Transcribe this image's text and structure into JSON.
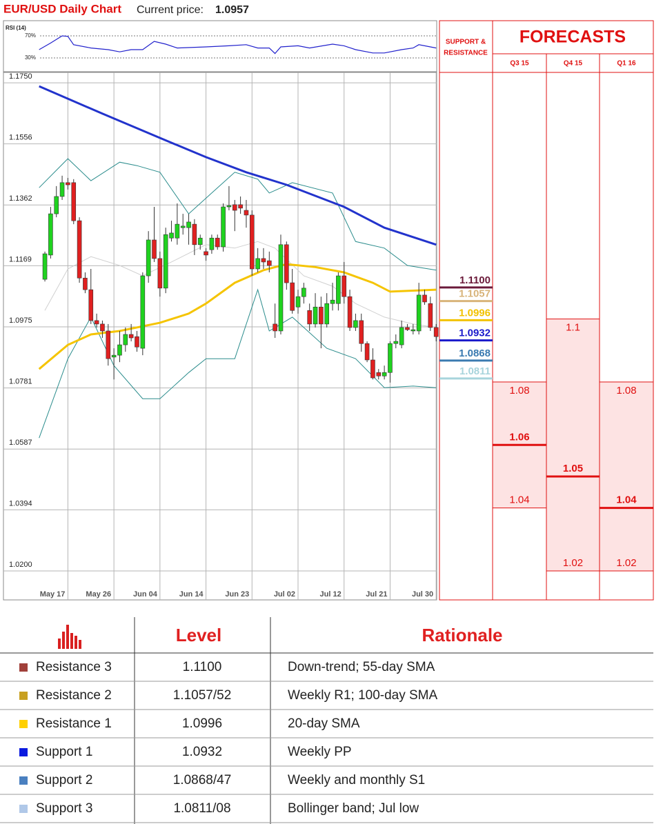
{
  "header": {
    "title": "EUR/USD Daily Chart",
    "price_label": "Current price:",
    "price": 1.0957
  },
  "chart_data": [
    {
      "type": "line",
      "title": "RSI (14)",
      "color": "#2020cc",
      "x": [
        -1,
        1,
        3,
        4,
        5,
        8,
        11,
        13,
        15,
        17,
        19,
        21,
        23,
        28,
        32,
        35,
        37,
        39,
        40,
        41,
        44,
        46,
        50,
        52,
        54,
        57,
        59,
        62,
        64,
        65,
        68
      ],
      "values": [
        45,
        57,
        70,
        69,
        54,
        48,
        45,
        41,
        45,
        45,
        60,
        55,
        48,
        50,
        52,
        54,
        48,
        48,
        38,
        50,
        52,
        48,
        55,
        52,
        45,
        39,
        39,
        45,
        48,
        54,
        48
      ],
      "xlim": [
        -7.2,
        68.1
      ],
      "ylim": [
        6.25,
        93.75
      ],
      "yticks": [
        {
          "value": 70,
          "label": "70%"
        },
        {
          "value": 30,
          "label": "30%"
        }
      ]
    },
    {
      "type": "candlestick",
      "up_color": "#1fd21f",
      "down_color": "#e02020",
      "grid": true,
      "open": [
        1.1126,
        1.1203,
        1.1334,
        1.1389,
        1.1433,
        1.1433,
        1.1312,
        1.113,
        1.1093,
        1.0995,
        1.0984,
        1.0962,
        1.0879,
        1.0885,
        1.0918,
        1.0951,
        1.0944,
        1.0907,
        1.1137,
        1.1251,
        1.1192,
        1.1098,
        1.1257,
        1.1257,
        1.129,
        1.129,
        1.1301,
        1.1236,
        1.1214,
        1.122,
        1.1257,
        1.1229,
        1.1356,
        1.1363,
        1.1363,
        1.1345,
        1.133,
        1.1159,
        1.1192,
        1.1185,
        1.0984,
        1.0962,
        1.1236,
        1.1115,
        1.1038,
        1.1071,
        1.1027,
        1.0984,
        1.1038,
        1.0984,
        1.1049,
        1.1049,
        1.1137,
        1.1071,
        1.0973,
        1.0995,
        1.0922,
        1.087,
        1.083,
        1.0819,
        1.083,
        1.0922,
        1.0918,
        1.0973,
        1.0962,
        1.0962,
        1.1076,
        1.1049,
        1.0973
      ],
      "high": [
        1.1214,
        1.1356,
        1.1422,
        1.1455,
        1.1448,
        1.1444,
        1.1323,
        1.1148,
        1.1159,
        1.1017,
        1.0995,
        1.0984,
        1.0907,
        1.0962,
        1.0973,
        1.0984,
        1.0962,
        1.1148,
        1.1279,
        1.1356,
        1.1214,
        1.129,
        1.1312,
        1.1367,
        1.1334,
        1.1334,
        1.1317,
        1.1268,
        1.1225,
        1.1268,
        1.1268,
        1.1367,
        1.1422,
        1.1378,
        1.1389,
        1.1378,
        1.1345,
        1.1225,
        1.1225,
        1.1214,
        1.1049,
        1.1268,
        1.1246,
        1.1159,
        1.1093,
        1.1115,
        1.1049,
        1.1082,
        1.1071,
        1.1082,
        1.1115,
        1.1148,
        1.1181,
        1.1093,
        1.1017,
        1.1017,
        1.0929,
        1.0907,
        1.0841,
        1.0852,
        1.0929,
        1.0951,
        1.0995,
        1.0984,
        1.0984,
        1.1115,
        1.1093,
        1.1071,
        1.0984
      ],
      "low": [
        1.1119,
        1.1192,
        1.1323,
        1.1378,
        1.1411,
        1.1301,
        1.1115,
        1.1082,
        1.0984,
        1.0973,
        1.094,
        1.0852,
        1.0808,
        1.0863,
        1.0896,
        1.0929,
        1.0896,
        1.0885,
        1.1115,
        1.1181,
        1.1071,
        1.1082,
        1.1246,
        1.1236,
        1.1268,
        1.1236,
        1.1203,
        1.122,
        1.1185,
        1.1207,
        1.122,
        1.1214,
        1.1345,
        1.1279,
        1.1334,
        1.129,
        1.1137,
        1.1148,
        1.1159,
        1.1148,
        1.094,
        1.0951,
        1.1093,
        1.1017,
        1.1017,
        1.1049,
        1.0962,
        1.0973,
        1.0907,
        1.0973,
        1.1027,
        1.1027,
        1.1049,
        1.0962,
        1.0962,
        1.0896,
        1.0863,
        1.0808,
        1.0808,
        1.0808,
        1.0798,
        1.0907,
        1.0907,
        1.0962,
        1.0951,
        1.0951,
        1.1045,
        1.0962,
        1.0929
      ],
      "close": [
        1.1207,
        1.1334,
        1.1389,
        1.1433,
        1.1426,
        1.1312,
        1.113,
        1.1093,
        1.0995,
        1.0984,
        1.0962,
        1.0874,
        1.0885,
        1.0918,
        1.0951,
        1.094,
        1.0911,
        1.1137,
        1.1251,
        1.1192,
        1.1098,
        1.1268,
        1.1273,
        1.1301,
        1.1295,
        1.1308,
        1.1236,
        1.1257,
        1.1203,
        1.1257,
        1.1229,
        1.1356,
        1.136,
        1.1345,
        1.1352,
        1.133,
        1.1159,
        1.1192,
        1.1181,
        1.117,
        1.0962,
        1.1236,
        1.1115,
        1.1027,
        1.1071,
        1.1098,
        1.0984,
        1.1038,
        1.0984,
        1.1049,
        1.106,
        1.1137,
        1.1071,
        1.0973,
        1.0995,
        1.0922,
        1.087,
        1.0813,
        1.0819,
        1.083,
        1.0922,
        1.0929,
        1.0973,
        1.0966,
        1.0966,
        1.1076,
        1.1054,
        1.0973,
        1.0944
      ],
      "series": [
        {
          "color": "#d0d0d0",
          "width": 1,
          "x": [
            0,
            4,
            8,
            13,
            17,
            22,
            28,
            33,
            37,
            40,
            45,
            50,
            54,
            59,
            64,
            68
          ],
          "values": [
            1.1027,
            1.1159,
            1.1198,
            1.117,
            1.1137,
            1.1181,
            1.1236,
            1.1225,
            1.1246,
            1.1225,
            1.1137,
            1.1104,
            1.1049,
            1.1006,
            1.0984,
            1.0973
          ]
        },
        {
          "color": "#2a8c8c",
          "width": 1,
          "x": [
            -1,
            4,
            8,
            13,
            16,
            20,
            25,
            29,
            33,
            37,
            39,
            43,
            50,
            54,
            59,
            63,
            68
          ],
          "values": [
            1.1417,
            1.1509,
            1.1439,
            1.1498,
            1.1487,
            1.1466,
            1.1334,
            1.14,
            1.1466,
            1.1444,
            1.14,
            1.1433,
            1.14,
            1.1246,
            1.1225,
            1.117,
            1.1155
          ]
        },
        {
          "color": "#2a8c8c",
          "width": 1,
          "x": [
            -1,
            4,
            8,
            12,
            17,
            20,
            25,
            28,
            33,
            37,
            39,
            43,
            49,
            54,
            59,
            64,
            68
          ],
          "values": [
            1.0622,
            1.0874,
            1.1006,
            1.0852,
            1.0747,
            1.0747,
            1.083,
            1.0874,
            1.0874,
            1.1093,
            1.0962,
            1.1006,
            1.0907,
            1.0874,
            1.0782,
            1.0787,
            1.0782
          ]
        },
        {
          "color": "#f5c400",
          "width": 3,
          "x": [
            -1,
            4,
            8,
            13,
            20,
            25,
            28,
            33,
            38,
            42,
            47,
            52,
            57,
            60,
            68
          ],
          "values": [
            1.0841,
            1.0918,
            1.0951,
            1.0962,
            1.0988,
            1.1017,
            1.1049,
            1.1115,
            1.1155,
            1.1174,
            1.1165,
            1.1148,
            1.1115,
            1.1087,
            1.1093
          ]
        },
        {
          "color": "#2233cc",
          "width": 3,
          "x": [
            -1,
            10,
            20,
            28,
            35,
            42,
            52,
            59,
            68
          ],
          "values": [
            1.1739,
            1.1652,
            1.1575,
            1.1514,
            1.1466,
            1.1426,
            1.1356,
            1.129,
            1.1236
          ]
        }
      ],
      "xlim": [
        -7.2,
        68.1
      ],
      "ylim": [
        1.0108,
        1.1783
      ],
      "yticks": [
        {
          "value": 1.175,
          "label": "1.1750"
        },
        {
          "value": 1.1556,
          "label": "1.1556"
        },
        {
          "value": 1.1362,
          "label": "1.1362"
        },
        {
          "value": 1.1169,
          "label": "1.1169"
        },
        {
          "value": 1.0975,
          "label": "1.0975"
        },
        {
          "value": 1.0781,
          "label": "1.0781"
        },
        {
          "value": 1.0587,
          "label": "1.0587"
        },
        {
          "value": 1.0394,
          "label": "1.0394"
        },
        {
          "value": 1.02,
          "label": "1.0200"
        }
      ],
      "xticks": [
        {
          "value": 4,
          "label": "May 17"
        },
        {
          "value": 12,
          "label": "May 26"
        },
        {
          "value": 20,
          "label": "Jun 04"
        },
        {
          "value": 28,
          "label": "Jun 14"
        },
        {
          "value": 36,
          "label": "Jun 23"
        },
        {
          "value": 44,
          "label": "Jul 02"
        },
        {
          "value": 52,
          "label": "Jul 12"
        },
        {
          "value": 60,
          "label": "Jul 21"
        },
        {
          "value": 68,
          "label": "Jul 30"
        }
      ]
    }
  ],
  "support_resistance": {
    "title": [
      "SUPPORT &",
      "RESISTANCE"
    ],
    "levels": [
      {
        "value": 1.11,
        "label": "1.1100",
        "color": "#6b1a3a"
      },
      {
        "value": 1.1057,
        "color": "#d8b47a"
      },
      {
        "value": 1.0996,
        "color": "#f2c200"
      },
      {
        "value": 1.0932,
        "color": "#1a1acc"
      },
      {
        "value": 1.0868,
        "color": "#3a7ab0"
      },
      {
        "value": 1.0811,
        "color": "#a8d4dc"
      }
    ]
  },
  "forecasts": {
    "title": "FORECASTS",
    "columns": [
      {
        "label": "Q3 15",
        "high": 1.08,
        "mid": 1.06,
        "low": 1.04
      },
      {
        "label": "Q4 15",
        "high": 1.1,
        "mid": 1.05,
        "low": 1.02
      },
      {
        "label": "Q1 16",
        "high": 1.08,
        "mid": 1.04,
        "low": 1.02
      }
    ]
  },
  "table": {
    "header": [
      "Level",
      "Rationale"
    ],
    "rows": [
      {
        "color": "#a0403a",
        "name": "Resistance 3",
        "level": "1.1100",
        "rationale": "Down-trend; 55-day SMA"
      },
      {
        "color": "#c8a020",
        "name": "Resistance 2",
        "level": "1.1057/52",
        "rationale": "Weekly R1; 100-day SMA"
      },
      {
        "color": "#ffd000",
        "name": "Resistance 1",
        "level": "1.0996",
        "rationale": "20-day SMA"
      },
      {
        "color": "#0a1adf",
        "name": "Support 1",
        "level": "1.0932",
        "rationale": "Weekly PP"
      },
      {
        "color": "#4a80c0",
        "name": "Support 2",
        "level": "1.0868/47",
        "rationale": "Weekly and monthly S1"
      },
      {
        "color": "#b0c8e8",
        "name": "Support 3",
        "level": "1.0811/08",
        "rationale": "Bollinger band; Jul low"
      }
    ]
  }
}
